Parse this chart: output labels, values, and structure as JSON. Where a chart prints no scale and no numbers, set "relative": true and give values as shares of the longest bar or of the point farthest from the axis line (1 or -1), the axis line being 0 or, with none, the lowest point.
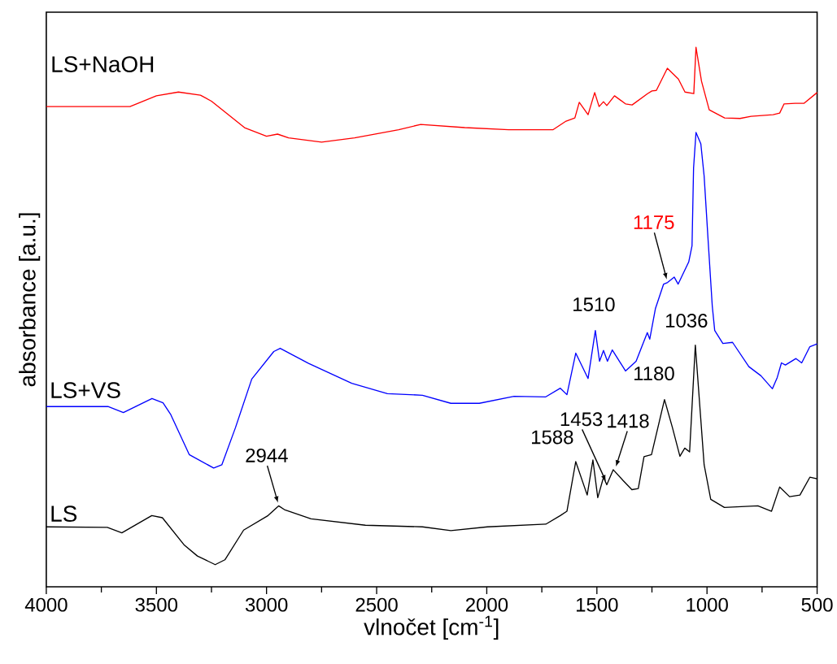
{
  "chart_data": {
    "type": "line",
    "relative": true,
    "xlabel": "vlnočet [cm$^{-1}$]",
    "ylabel": "absorbance [a.u.]",
    "xlim": [
      4000,
      500
    ],
    "xticks": [
      4000,
      3500,
      3000,
      2500,
      2000,
      1500,
      1000,
      500
    ],
    "legend": false,
    "marker": "none",
    "line_style": "solid",
    "series": [
      {
        "name": "LS+NaOH",
        "color": "#ff0000",
        "x": [
          4000,
          3620,
          3500,
          3400,
          3300,
          3250,
          3100,
          3000,
          2950,
          2900,
          2750,
          2600,
          2400,
          2300,
          2100,
          1900,
          1700,
          1640,
          1600,
          1580,
          1540,
          1510,
          1490,
          1470,
          1455,
          1420,
          1370,
          1340,
          1270,
          1250,
          1230,
          1180,
          1130,
          1100,
          1060,
          1050,
          1025,
          990,
          920,
          850,
          800,
          700,
          670,
          650,
          600,
          560,
          500
        ],
        "values": [
          0.89,
          0.89,
          0.91,
          0.917,
          0.911,
          0.9,
          0.851,
          0.835,
          0.839,
          0.832,
          0.824,
          0.832,
          0.847,
          0.857,
          0.851,
          0.847,
          0.847,
          0.863,
          0.869,
          0.898,
          0.875,
          0.916,
          0.89,
          0.899,
          0.892,
          0.91,
          0.895,
          0.893,
          0.914,
          0.919,
          0.92,
          0.961,
          0.941,
          0.917,
          0.914,
          1.0,
          0.937,
          0.884,
          0.869,
          0.868,
          0.872,
          0.875,
          0.878,
          0.895,
          0.896,
          0.896,
          0.916
        ]
      },
      {
        "name": "LS+VS",
        "color": "#0000ff",
        "x": [
          4000,
          3720,
          3650,
          3520,
          3470,
          3436,
          3351,
          3240,
          3203,
          3141,
          3067,
          2967,
          2938,
          2809,
          2613,
          2451,
          2292,
          2163,
          2034,
          1876,
          1732,
          1666,
          1636,
          1596,
          1540,
          1507,
          1488,
          1470,
          1452,
          1430,
          1370,
          1322,
          1271,
          1260,
          1234,
          1197,
          1179,
          1149,
          1131,
          1083,
          1068,
          1061,
          1050,
          1028,
          1013,
          994,
          976,
          965,
          928,
          884,
          810,
          755,
          703,
          681,
          662,
          644,
          596,
          570,
          533,
          500
        ],
        "values": [
          0.334,
          0.334,
          0.323,
          0.349,
          0.341,
          0.32,
          0.245,
          0.22,
          0.226,
          0.295,
          0.385,
          0.436,
          0.442,
          0.414,
          0.377,
          0.358,
          0.355,
          0.34,
          0.34,
          0.353,
          0.352,
          0.368,
          0.356,
          0.433,
          0.386,
          0.475,
          0.418,
          0.438,
          0.418,
          0.439,
          0.4,
          0.418,
          0.471,
          0.459,
          0.516,
          0.561,
          0.564,
          0.574,
          0.561,
          0.602,
          0.632,
          0.776,
          0.842,
          0.821,
          0.761,
          0.636,
          0.52,
          0.475,
          0.451,
          0.453,
          0.408,
          0.391,
          0.367,
          0.388,
          0.415,
          0.411,
          0.423,
          0.415,
          0.445,
          0.45
        ]
      },
      {
        "name": "LS",
        "color": "#000000",
        "x": [
          4000,
          3723,
          3657,
          3521,
          3473,
          3373,
          3314,
          3233,
          3189,
          3104,
          2993,
          2945,
          2919,
          2798,
          2551,
          2292,
          2163,
          1997,
          1732,
          1666,
          1636,
          1596,
          1544,
          1518,
          1496,
          1470,
          1455,
          1426,
          1381,
          1341,
          1312,
          1286,
          1252,
          1193,
          1157,
          1123,
          1101,
          1079,
          1053,
          1013,
          983,
          921,
          769,
          707,
          670,
          625,
          578,
          533,
          500
        ],
        "values": [
          0.111,
          0.11,
          0.1,
          0.132,
          0.128,
          0.077,
          0.057,
          0.041,
          0.05,
          0.105,
          0.132,
          0.15,
          0.143,
          0.126,
          0.114,
          0.111,
          0.104,
          0.111,
          0.116,
          0.132,
          0.14,
          0.232,
          0.17,
          0.235,
          0.165,
          0.203,
          0.189,
          0.217,
          0.197,
          0.18,
          0.182,
          0.241,
          0.245,
          0.347,
          0.295,
          0.242,
          0.257,
          0.25,
          0.448,
          0.226,
          0.162,
          0.147,
          0.15,
          0.14,
          0.185,
          0.167,
          0.17,
          0.203,
          0.2
        ]
      }
    ],
    "annotations": [
      {
        "text": "2944",
        "x": 2944,
        "y": 0.15
      },
      {
        "text": "1588",
        "x": 1596,
        "y": 0.232
      },
      {
        "text": "1453",
        "x": 1453,
        "y": 0.19
      },
      {
        "text": "1418",
        "x": 1418,
        "y": 0.217
      },
      {
        "text": "1180",
        "x": 1193,
        "y": 0.347
      },
      {
        "text": "1036",
        "x": 1053,
        "y": 0.448
      },
      {
        "text": "1510",
        "x": 1507,
        "y": 0.475
      },
      {
        "text": "1175",
        "x": 1179,
        "y": 0.564
      }
    ]
  }
}
